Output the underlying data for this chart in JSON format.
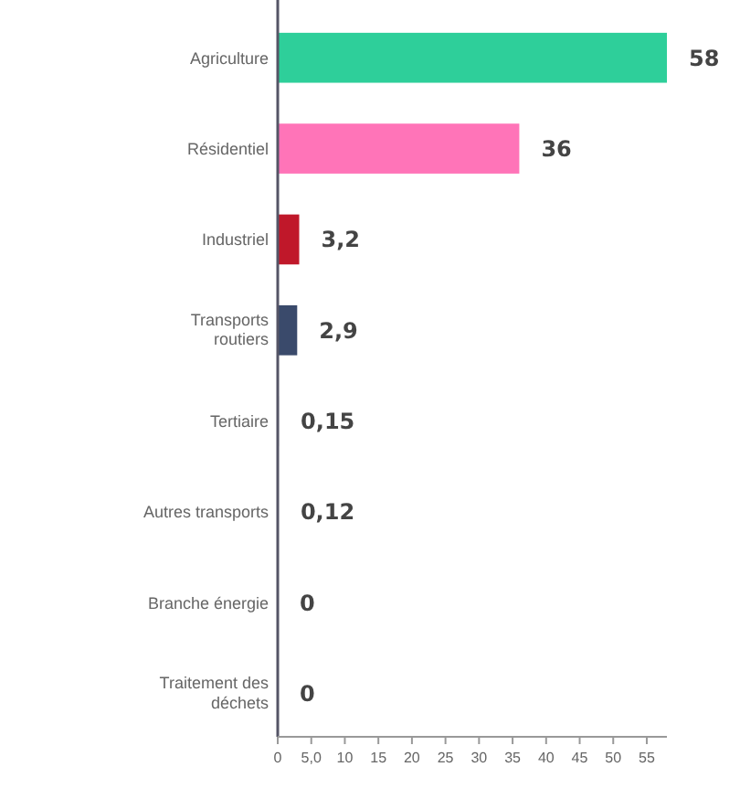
{
  "chart_data": {
    "type": "bar",
    "orientation": "horizontal",
    "categories": [
      "Agriculture",
      "Résidentiel",
      "Industriel",
      "Transports routiers",
      "Tertiaire",
      "Autres transports",
      "Branche énergie",
      "Traitement des déchets"
    ],
    "values": [
      58,
      36,
      3.2,
      2.9,
      0.15,
      0.12,
      0,
      0
    ],
    "colors": [
      "#2ecf9a",
      "#ff74b8",
      "#c0182a",
      "#3a4a6b",
      "#8a8a8a",
      "#8a8a8a",
      "#8a8a8a",
      "#8a8a8a"
    ],
    "value_labels": [
      "58",
      "36",
      "3,2",
      "2,9",
      "0,15",
      "0,12",
      "0",
      "0"
    ],
    "xlim": [
      0,
      58
    ],
    "xticks": [
      0,
      {
        "value": 5,
        "label": "5,0"
      },
      10,
      15,
      20,
      25,
      30,
      35,
      40,
      45,
      50,
      55
    ],
    "grid": false
  }
}
